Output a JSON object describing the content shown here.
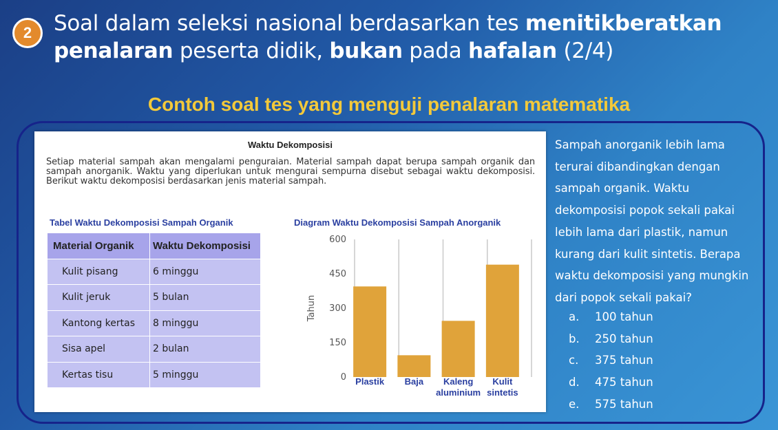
{
  "header": {
    "badge": "2",
    "title_parts": [
      {
        "text": "Soal dalam seleksi nasional berdasarkan tes ",
        "bold": false
      },
      {
        "text": "menitikberatkan",
        "bold": true
      },
      {
        "text": " ",
        "bold": false
      },
      {
        "text": "penalaran",
        "bold": true
      },
      {
        "text": " peserta didik, ",
        "bold": false
      },
      {
        "text": "bukan",
        "bold": true
      },
      {
        "text": " pada ",
        "bold": false
      },
      {
        "text": "hafalan",
        "bold": true
      },
      {
        "text": " (2/4)",
        "bold": false
      }
    ]
  },
  "subtitle": "Contoh soal tes yang menguji penalaran matematika",
  "card": {
    "title": "Waktu Dekomposisi",
    "paragraph": "Setiap material sampah akan mengalami penguraian. Material sampah dapat berupa sampah organik dan sampah anorganik. Waktu yang diperlukan untuk mengurai sempurna disebut sebagai waktu dekomposisi. Berikut waktu dekomposisi berdasarkan jenis material sampah.",
    "table_caption": "Tabel Waktu Dekomposisi Sampah Organik",
    "table": {
      "headers": [
        "Material Organik",
        "Waktu Dekomposisi"
      ],
      "rows": [
        [
          "Kulit pisang",
          "6 minggu"
        ],
        [
          "Kulit jeruk",
          "5 bulan"
        ],
        [
          "Kantong kertas",
          "8 minggu"
        ],
        [
          "Sisa apel",
          "2 bulan"
        ],
        [
          "Kertas tisu",
          "5 minggu"
        ]
      ]
    },
    "chart_caption": "Diagram Waktu Dekomposisi Sampah Anorganik"
  },
  "chart_data": {
    "type": "bar",
    "title": "Diagram Waktu Dekomposisi Sampah Anorganik",
    "categories": [
      [
        "Plastik"
      ],
      [
        "Baja"
      ],
      [
        "Kaleng",
        "aluminium"
      ],
      [
        "Kulit",
        "sintetis"
      ]
    ],
    "values": [
      395,
      95,
      245,
      490
    ],
    "ylabel": "Tahun",
    "xlabel": "",
    "ylim": [
      0,
      600
    ],
    "yticks": [
      0,
      150,
      300,
      450,
      600
    ],
    "bar_color": "#e0a33a",
    "grid": "vertical"
  },
  "question": {
    "text": "Sampah anorganik lebih lama terurai dibandingkan dengan sampah organik. Waktu dekomposisi popok sekali pakai lebih lama dari plastik, namun kurang dari kulit sintetis. Berapa waktu dekomposisi yang mungkin dari popok sekali pakai?",
    "options": [
      {
        "letter": "a.",
        "text": "100 tahun"
      },
      {
        "letter": "b.",
        "text": "250 tahun"
      },
      {
        "letter": "c.",
        "text": "375 tahun"
      },
      {
        "letter": "d.",
        "text": "475 tahun"
      },
      {
        "letter": "e.",
        "text": "575 tahun"
      }
    ]
  },
  "colors": {
    "accent_yellow": "#f3c93a",
    "badge_orange": "#e38a2c",
    "frame_navy": "#16238a",
    "table_header": "#a7a4ea",
    "table_cell": "#c3c2f2",
    "caption_blue": "#2a3fa0"
  }
}
